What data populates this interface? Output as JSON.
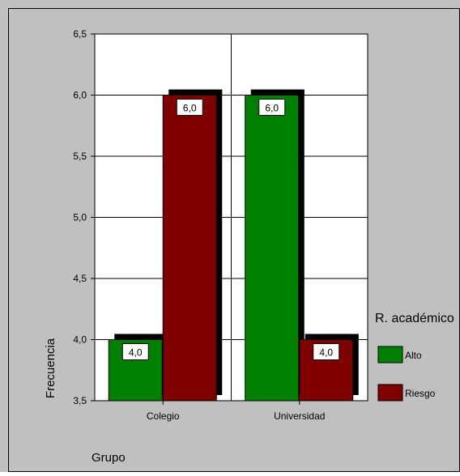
{
  "chart_data": {
    "type": "bar",
    "xlabel": "Grupo",
    "ylabel": "Frecuencia",
    "categories": [
      "Colegio",
      "Universidad"
    ],
    "ylim": [
      3.5,
      6.5
    ],
    "yticks": [
      "3,5",
      "4,0",
      "4,5",
      "5,0",
      "5,5",
      "6,0",
      "6,5"
    ],
    "ytick_values": [
      3.5,
      4.0,
      4.5,
      5.0,
      5.5,
      6.0,
      6.5
    ],
    "legend_title": "R. académico",
    "legend_position": "right",
    "series": [
      {
        "name": "Alto",
        "values": [
          4.0,
          6.0
        ],
        "color": "#008000"
      },
      {
        "name": "Riesgo",
        "values": [
          6.0,
          4.0
        ],
        "color": "#800000"
      }
    ],
    "data_labels": [
      [
        "4,0",
        "6,0"
      ],
      [
        "6,0",
        "4,0"
      ]
    ],
    "grid": true,
    "background": "#c0c0c0",
    "plot_background": "#ffffff"
  }
}
